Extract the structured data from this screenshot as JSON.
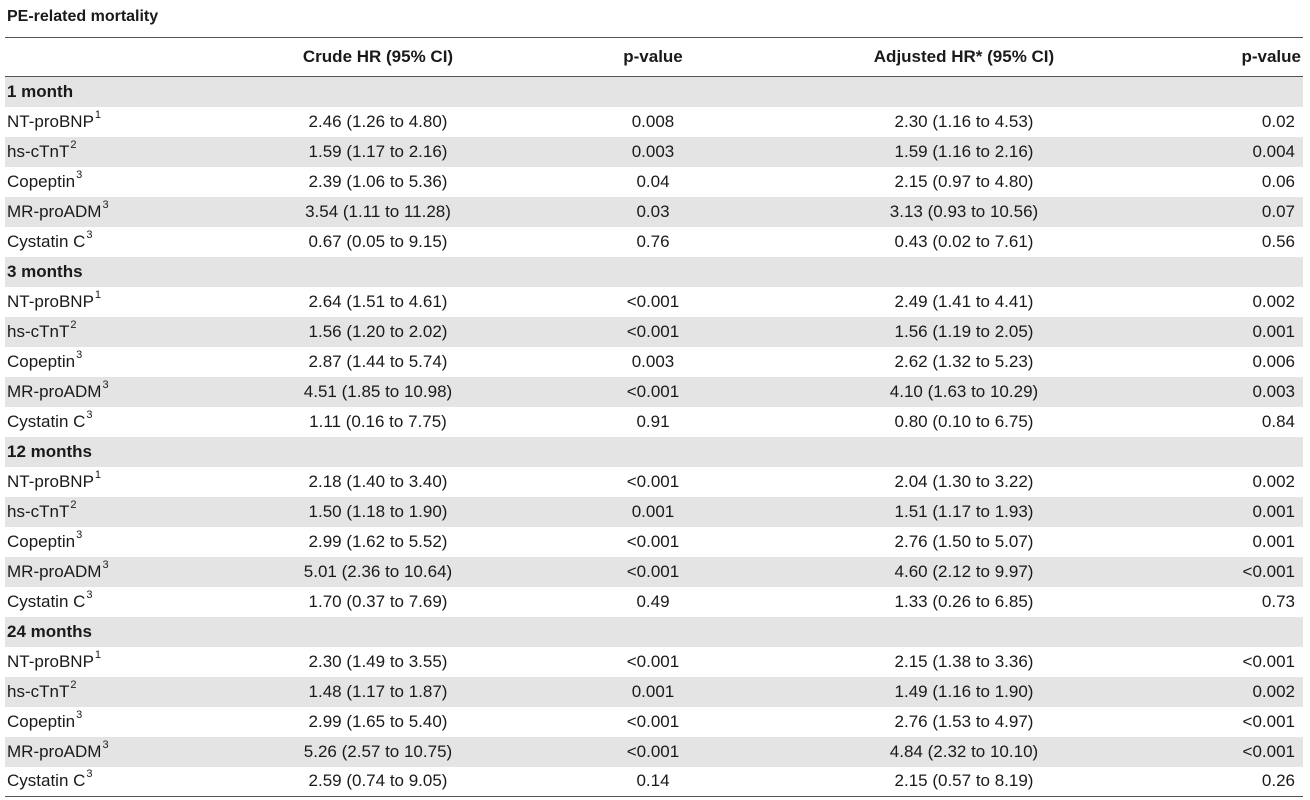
{
  "title": "PE-related mortality",
  "headers": {
    "marker": "",
    "crude": "Crude HR (95% CI)",
    "p1": "p-value",
    "adjusted": "Adjusted HR* (95% CI)",
    "p2": "p-value"
  },
  "sections": [
    {
      "label": "1 month",
      "rows": [
        {
          "marker": "NT-proBNP",
          "sup": "1",
          "crude": "2.46 (1.26 to 4.80)",
          "p1": "0.008",
          "adjusted": "2.30 (1.16 to 4.53)",
          "p2": "0.02"
        },
        {
          "marker": "hs-cTnT",
          "sup": "2",
          "crude": "1.59 (1.17 to 2.16)",
          "p1": "0.003",
          "adjusted": "1.59 (1.16 to 2.16)",
          "p2": "0.004"
        },
        {
          "marker": "Copeptin",
          "sup": "3",
          "crude": "2.39 (1.06 to 5.36)",
          "p1": "0.04",
          "adjusted": "2.15 (0.97 to 4.80)",
          "p2": "0.06"
        },
        {
          "marker": "MR-proADM",
          "sup": "3",
          "crude": "3.54 (1.11 to 11.28)",
          "p1": "0.03",
          "adjusted": "3.13 (0.93 to 10.56)",
          "p2": "0.07"
        },
        {
          "marker": "Cystatin C",
          "sup": "3",
          "crude": "0.67 (0.05 to 9.15)",
          "p1": "0.76",
          "adjusted": "0.43 (0.02 to 7.61)",
          "p2": "0.56"
        }
      ]
    },
    {
      "label": "3 months",
      "rows": [
        {
          "marker": "NT-proBNP",
          "sup": "1",
          "crude": "2.64 (1.51 to 4.61)",
          "p1": "<0.001",
          "adjusted": "2.49 (1.41 to 4.41)",
          "p2": "0.002"
        },
        {
          "marker": "hs-cTnT",
          "sup": "2",
          "crude": "1.56 (1.20 to 2.02)",
          "p1": "<0.001",
          "adjusted": "1.56 (1.19 to 2.05)",
          "p2": "0.001"
        },
        {
          "marker": "Copeptin",
          "sup": "3",
          "crude": "2.87 (1.44 to 5.74)",
          "p1": "0.003",
          "adjusted": "2.62 (1.32 to 5.23)",
          "p2": "0.006"
        },
        {
          "marker": "MR-proADM",
          "sup": "3",
          "crude": "4.51 (1.85 to 10.98)",
          "p1": "<0.001",
          "adjusted": "4.10 (1.63 to 10.29)",
          "p2": "0.003"
        },
        {
          "marker": "Cystatin C",
          "sup": "3",
          "crude": "1.11 (0.16 to 7.75)",
          "p1": "0.91",
          "adjusted": "0.80 (0.10 to 6.75)",
          "p2": "0.84"
        }
      ]
    },
    {
      "label": "12 months",
      "rows": [
        {
          "marker": "NT-proBNP",
          "sup": "1",
          "crude": "2.18 (1.40 to 3.40)",
          "p1": "<0.001",
          "adjusted": "2.04 (1.30 to 3.22)",
          "p2": "0.002"
        },
        {
          "marker": "hs-cTnT",
          "sup": "2",
          "crude": "1.50 (1.18 to 1.90)",
          "p1": "0.001",
          "adjusted": "1.51 (1.17 to 1.93)",
          "p2": "0.001"
        },
        {
          "marker": "Copeptin",
          "sup": "3",
          "crude": "2.99 (1.62 to 5.52)",
          "p1": "<0.001",
          "adjusted": "2.76 (1.50 to 5.07)",
          "p2": "0.001"
        },
        {
          "marker": "MR-proADM",
          "sup": "3",
          "crude": "5.01 (2.36 to 10.64)",
          "p1": "<0.001",
          "adjusted": "4.60 (2.12 to 9.97)",
          "p2": "<0.001"
        },
        {
          "marker": "Cystatin C",
          "sup": "3",
          "crude": "1.70 (0.37 to 7.69)",
          "p1": "0.49",
          "adjusted": "1.33 (0.26 to 6.85)",
          "p2": "0.73"
        }
      ]
    },
    {
      "label": "24 months",
      "rows": [
        {
          "marker": "NT-proBNP",
          "sup": "1",
          "crude": "2.30 (1.49 to 3.55)",
          "p1": "<0.001",
          "adjusted": "2.15 (1.38 to 3.36)",
          "p2": "<0.001"
        },
        {
          "marker": "hs-cTnT",
          "sup": "2",
          "crude": "1.48 (1.17 to 1.87)",
          "p1": "0.001",
          "adjusted": "1.49 (1.16 to 1.90)",
          "p2": "0.002"
        },
        {
          "marker": "Copeptin",
          "sup": "3",
          "crude": "2.99 (1.65 to 5.40)",
          "p1": "<0.001",
          "adjusted": "2.76 (1.53 to 4.97)",
          "p2": "<0.001"
        },
        {
          "marker": "MR-proADM",
          "sup": "3",
          "crude": "5.26 (2.57 to 10.75)",
          "p1": "<0.001",
          "adjusted": "4.84 (2.32 to 10.10)",
          "p2": "<0.001"
        },
        {
          "marker": "Cystatin C",
          "sup": "3",
          "crude": "2.59 (0.74 to 9.05)",
          "p1": "0.14",
          "adjusted": "2.15 (0.57 to 8.19)",
          "p2": "0.26"
        }
      ]
    }
  ]
}
